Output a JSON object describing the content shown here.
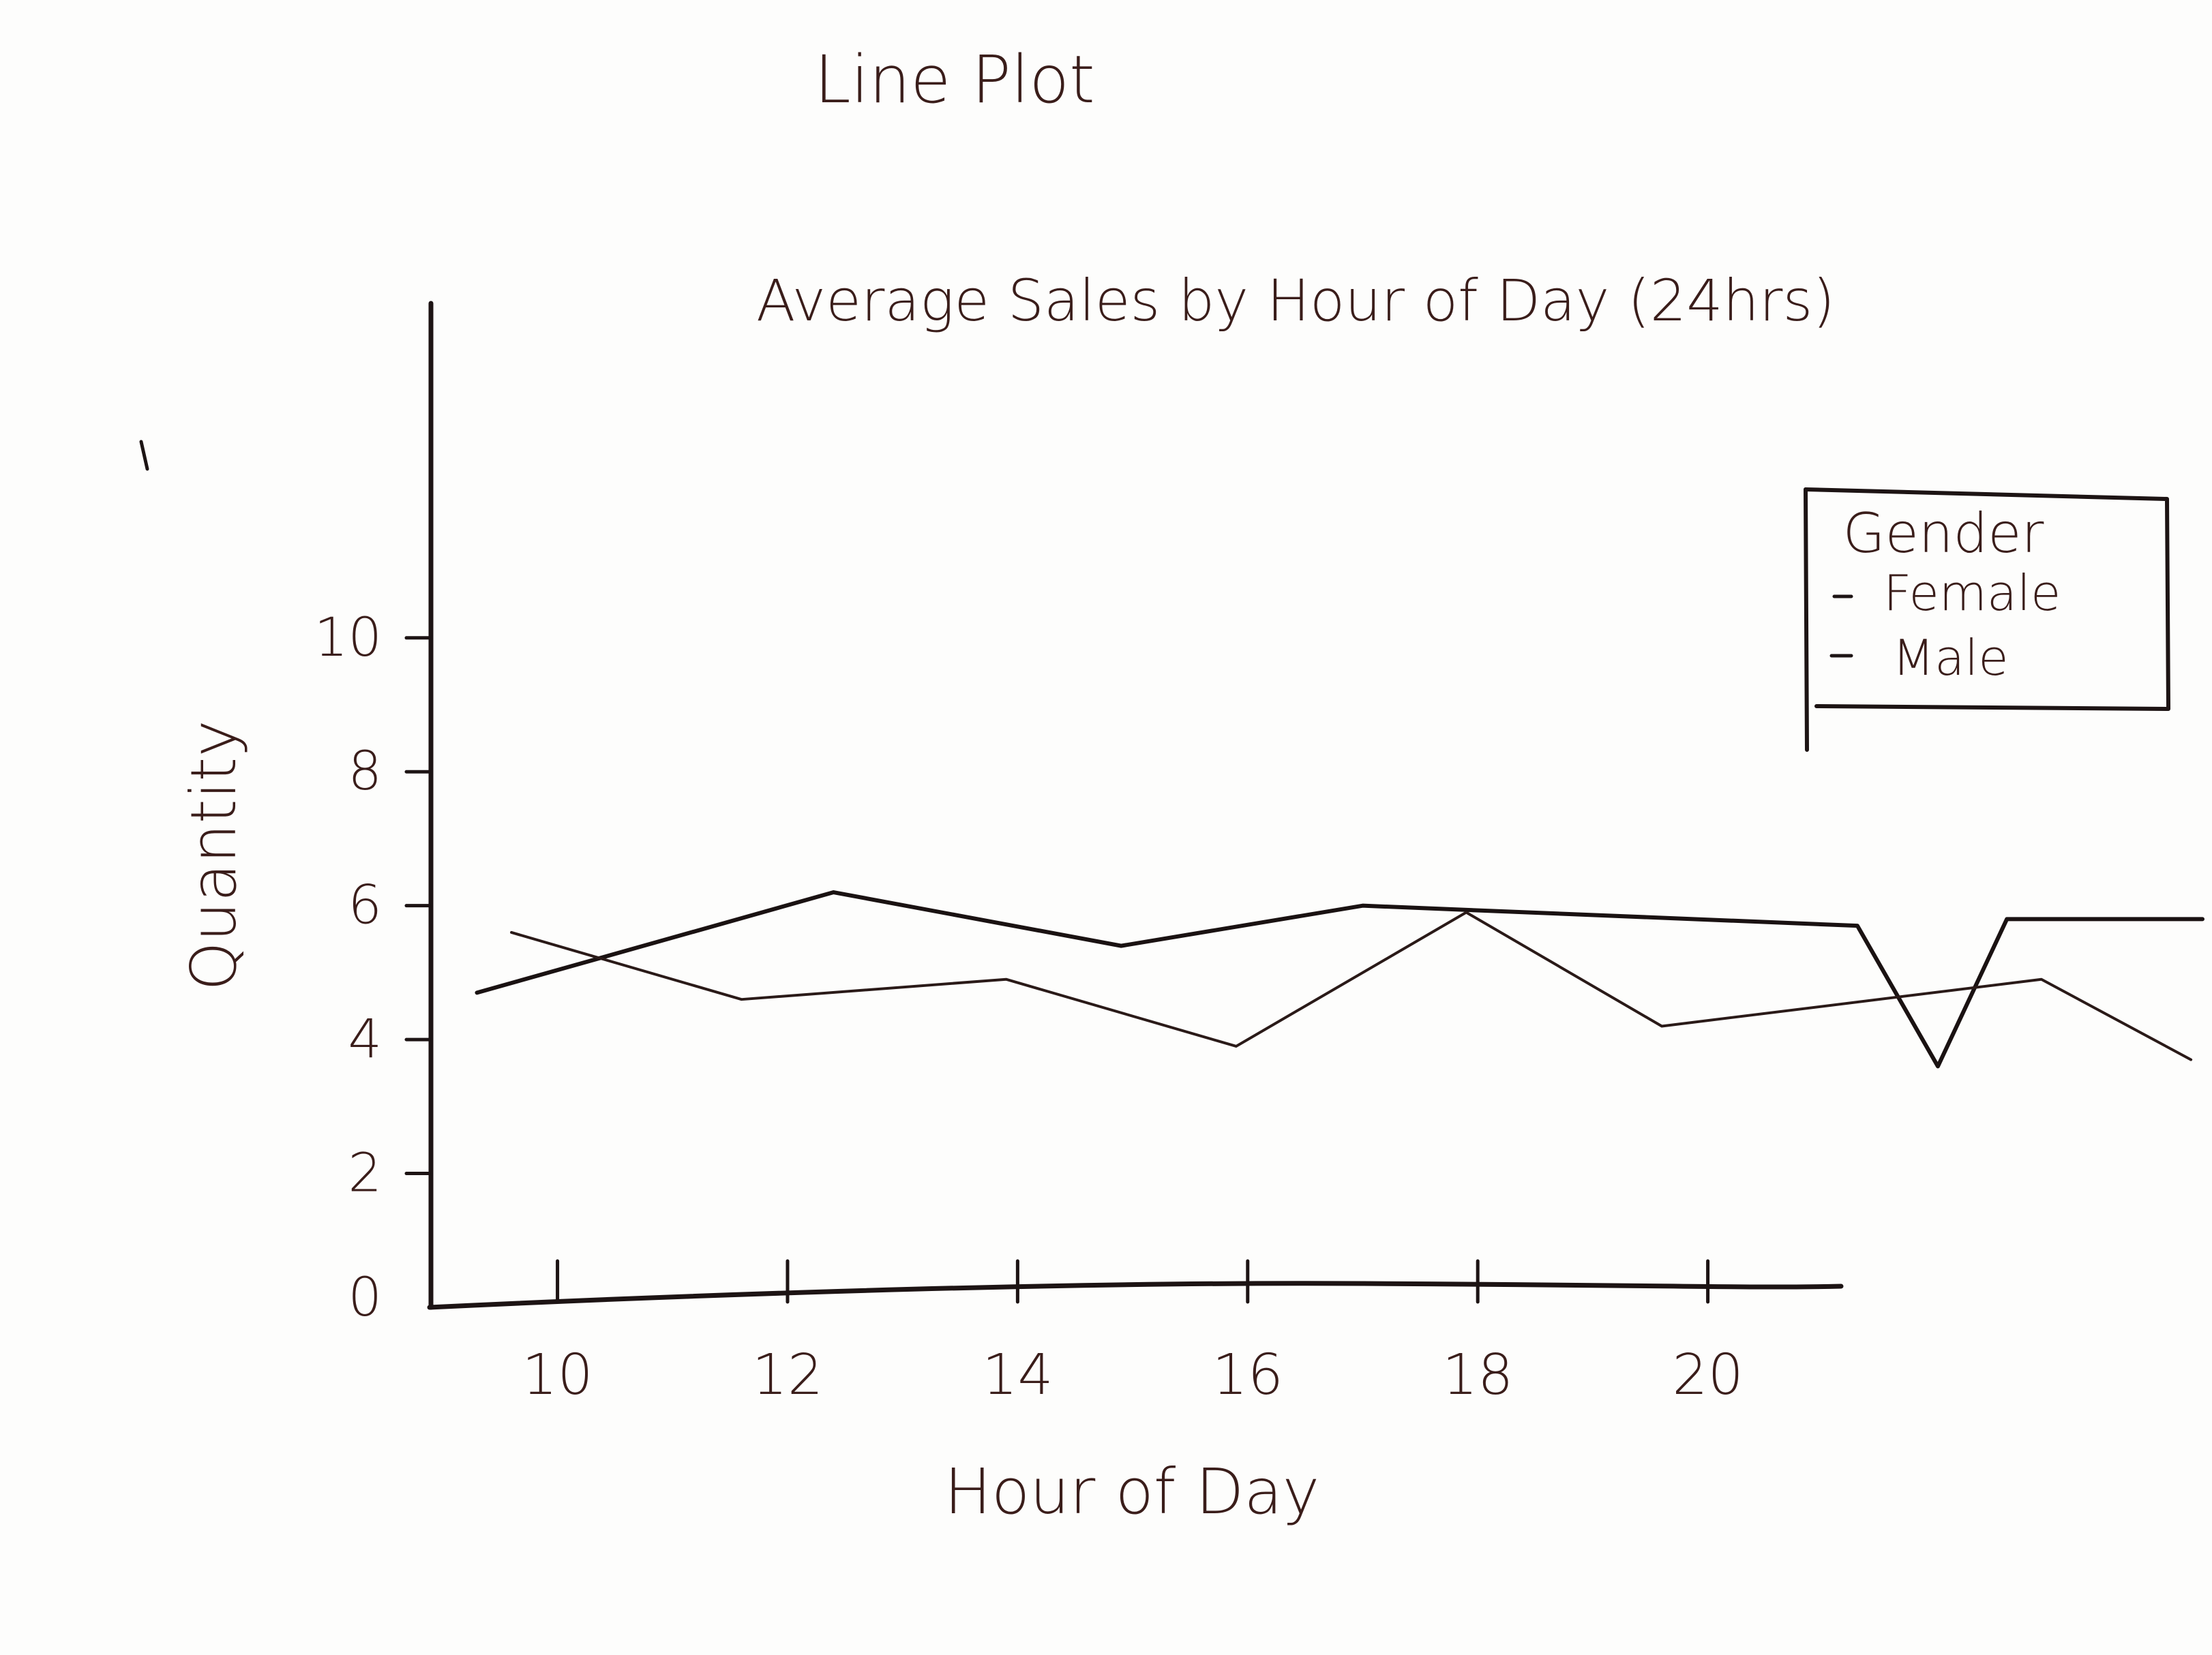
{
  "page_heading": "Line Plot",
  "chart_data": {
    "type": "line",
    "title": "Average Sales by Hour of Day (24hrs)",
    "xlabel": "Hour of Day",
    "ylabel": "Quantity",
    "x_ticks": [
      10,
      12,
      14,
      16,
      18,
      20
    ],
    "x_tick_labels": [
      "10",
      "12",
      "14",
      "16",
      "18",
      "20"
    ],
    "y_ticks": [
      0,
      2,
      4,
      6,
      8,
      10
    ],
    "y_tick_labels": [
      "0",
      "2",
      "4",
      "6",
      "8",
      "10"
    ],
    "xlim": [
      8.9,
      24.3
    ],
    "ylim": [
      0,
      14.6
    ],
    "grid": false,
    "legend": {
      "title": "Gender",
      "placement": "top-right",
      "entries": [
        "Female",
        "Male"
      ]
    },
    "series": [
      {
        "stroke": "#1a1212",
        "stroke_weight": "heavy",
        "points": [
          [
            9.3,
            4.7
          ],
          [
            12.4,
            6.2
          ],
          [
            14.9,
            5.4
          ],
          [
            17.0,
            6.0
          ],
          [
            21.3,
            5.7
          ],
          [
            22.0,
            3.6
          ],
          [
            22.6,
            5.8
          ],
          [
            24.3,
            5.8
          ]
        ]
      },
      {
        "stroke": "#2a1a18",
        "stroke_weight": "light",
        "points": [
          [
            9.6,
            5.6
          ],
          [
            11.6,
            4.6
          ],
          [
            13.9,
            4.9
          ],
          [
            15.9,
            3.9
          ],
          [
            17.9,
            5.9
          ],
          [
            19.6,
            4.2
          ],
          [
            22.9,
            4.9
          ],
          [
            24.2,
            3.7
          ]
        ]
      }
    ]
  }
}
